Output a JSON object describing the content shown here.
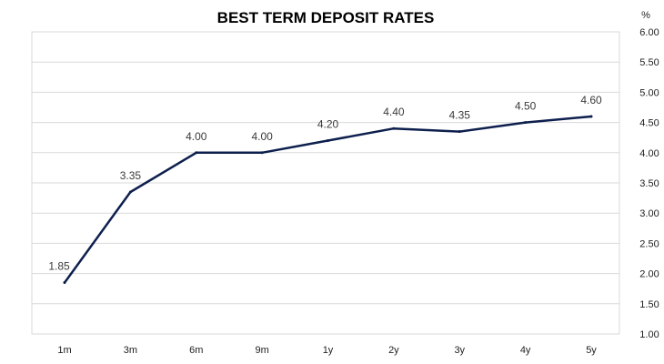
{
  "chart_data": {
    "type": "line",
    "title": "BEST TERM DEPOSIT RATES",
    "ylabel": "%",
    "xlabel": "",
    "categories": [
      "1m",
      "3m",
      "6m",
      "9m",
      "1y",
      "2y",
      "3y",
      "4y",
      "5y"
    ],
    "values": [
      1.85,
      3.35,
      4.0,
      4.0,
      4.2,
      4.4,
      4.35,
      4.5,
      4.6
    ],
    "data_labels": [
      "1.85",
      "3.35",
      "4.00",
      "4.00",
      "4.20",
      "4.40",
      "4.35",
      "4.50",
      "4.60"
    ],
    "ylim": [
      1.0,
      6.0
    ],
    "yticks": [
      "1.00",
      "1.50",
      "2.00",
      "2.50",
      "3.00",
      "3.50",
      "4.00",
      "4.50",
      "5.00",
      "5.50",
      "6.00"
    ],
    "y_axis_side": "right",
    "grid": true,
    "legend": "none",
    "line_color": "#0d1f4d",
    "grid_color": "#d9d9d9"
  }
}
